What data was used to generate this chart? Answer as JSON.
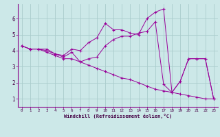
{
  "xlabel": "Windchill (Refroidissement éolien,°C)",
  "background_color": "#cce8e8",
  "line_color": "#990099",
  "grid_color": "#aacccc",
  "x_ticks": [
    0,
    1,
    2,
    3,
    4,
    5,
    6,
    7,
    8,
    9,
    10,
    11,
    12,
    13,
    14,
    15,
    16,
    17,
    18,
    19,
    20,
    21,
    22,
    23
  ],
  "y_ticks": [
    1,
    2,
    3,
    4,
    5,
    6
  ],
  "xlim": [
    -0.5,
    23.5
  ],
  "ylim": [
    0.5,
    6.9
  ],
  "series": [
    [
      4.3,
      4.1,
      4.1,
      4.1,
      3.8,
      3.7,
      4.1,
      4.0,
      4.5,
      4.8,
      5.7,
      5.3,
      5.3,
      5.1,
      5.0,
      6.0,
      6.4,
      6.6,
      1.4,
      2.1,
      3.5,
      3.5,
      3.5,
      1.0
    ],
    [
      4.3,
      4.1,
      4.1,
      4.0,
      3.8,
      3.6,
      3.9,
      3.3,
      3.5,
      3.6,
      4.3,
      4.7,
      4.9,
      4.9,
      5.1,
      5.2,
      5.8,
      1.9,
      1.4,
      2.1,
      3.5,
      3.5,
      3.5,
      1.0
    ],
    [
      4.3,
      4.1,
      4.1,
      3.9,
      3.7,
      3.5,
      3.5,
      3.3,
      3.1,
      2.9,
      2.7,
      2.5,
      2.3,
      2.2,
      2.0,
      1.8,
      1.6,
      1.5,
      1.4,
      1.3,
      1.2,
      1.1,
      1.0,
      1.0
    ]
  ]
}
